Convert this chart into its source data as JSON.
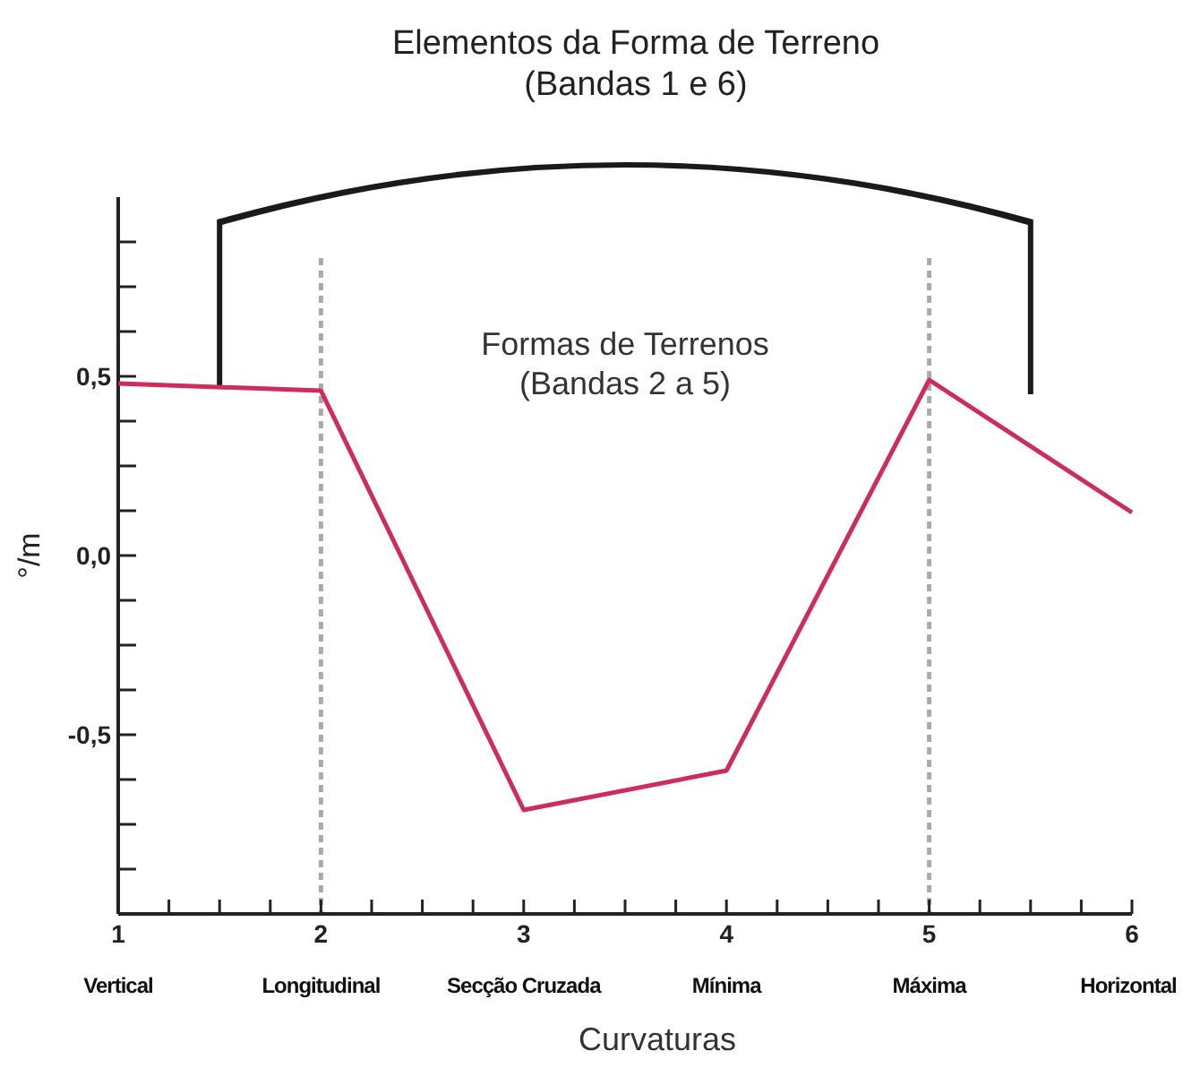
{
  "chart_data": {
    "type": "line",
    "title": "Elementos da Forma de Terreno\n(Bandas 1 e 6)",
    "xlabel": "Curvaturas",
    "ylabel": "°/m",
    "annotations": [
      "Formas de Terrenos\n(Bandas 2 a 5)",
      "Vertical",
      "Longitudinal",
      "Secção Cruzada",
      "Mínima",
      "Máxima",
      "Horizontal"
    ],
    "x": [
      1,
      2,
      3,
      4,
      5,
      6
    ],
    "series": [
      {
        "color": "#cc2d5a",
        "values": [
          0.48,
          0.46,
          -0.71,
          -0.6,
          0.49,
          0.12
        ]
      }
    ],
    "xlim": [
      1,
      6
    ],
    "ylim": [
      -1,
      1
    ],
    "xticks": [
      1,
      {
        "value": 1.25,
        "label": null
      },
      {
        "value": 1.5,
        "label": null
      },
      {
        "value": 1.75,
        "label": null
      },
      2,
      {
        "value": 2.25,
        "label": null
      },
      {
        "value": 2.5,
        "label": null
      },
      {
        "value": 2.75,
        "label": null
      },
      3,
      {
        "value": 3.25,
        "label": null
      },
      {
        "value": 3.5,
        "label": null
      },
      {
        "value": 3.75,
        "label": null
      },
      4,
      {
        "value": 4.25,
        "label": null
      },
      {
        "value": 4.5,
        "label": null
      },
      {
        "value": 4.75,
        "label": null
      },
      5,
      {
        "value": 5.25,
        "label": null
      },
      {
        "value": 5.5,
        "label": null
      },
      {
        "value": 5.75,
        "label": null
      },
      6
    ],
    "yticks": [
      {
        "value": -0.875,
        "label": null
      },
      {
        "value": -0.75,
        "label": null
      },
      {
        "value": -0.625,
        "label": null
      },
      {
        "value": -0.5,
        "label": "-0,5"
      },
      {
        "value": -0.375,
        "label": null
      },
      {
        "value": -0.25,
        "label": null
      },
      {
        "value": -0.125,
        "label": null
      },
      {
        "value": 0,
        "label": "0,0"
      },
      {
        "value": 0.125,
        "label": null
      },
      {
        "value": 0.25,
        "label": null
      },
      {
        "value": 0.375,
        "label": null
      },
      {
        "value": 0.5,
        "label": "0,5"
      },
      {
        "value": 0.625,
        "label": null
      },
      {
        "value": 0.75,
        "label": null
      },
      {
        "value": 0.875,
        "label": null
      }
    ],
    "ref_lines": [
      {
        "axis": "x",
        "value": 2,
        "color": "#aaaaaa",
        "line_style": "dashed"
      },
      {
        "axis": "x",
        "value": 5,
        "color": "#aaaaaa",
        "line_style": "dashed"
      }
    ],
    "grid": false,
    "marker": "none",
    "line_style": "solid"
  }
}
